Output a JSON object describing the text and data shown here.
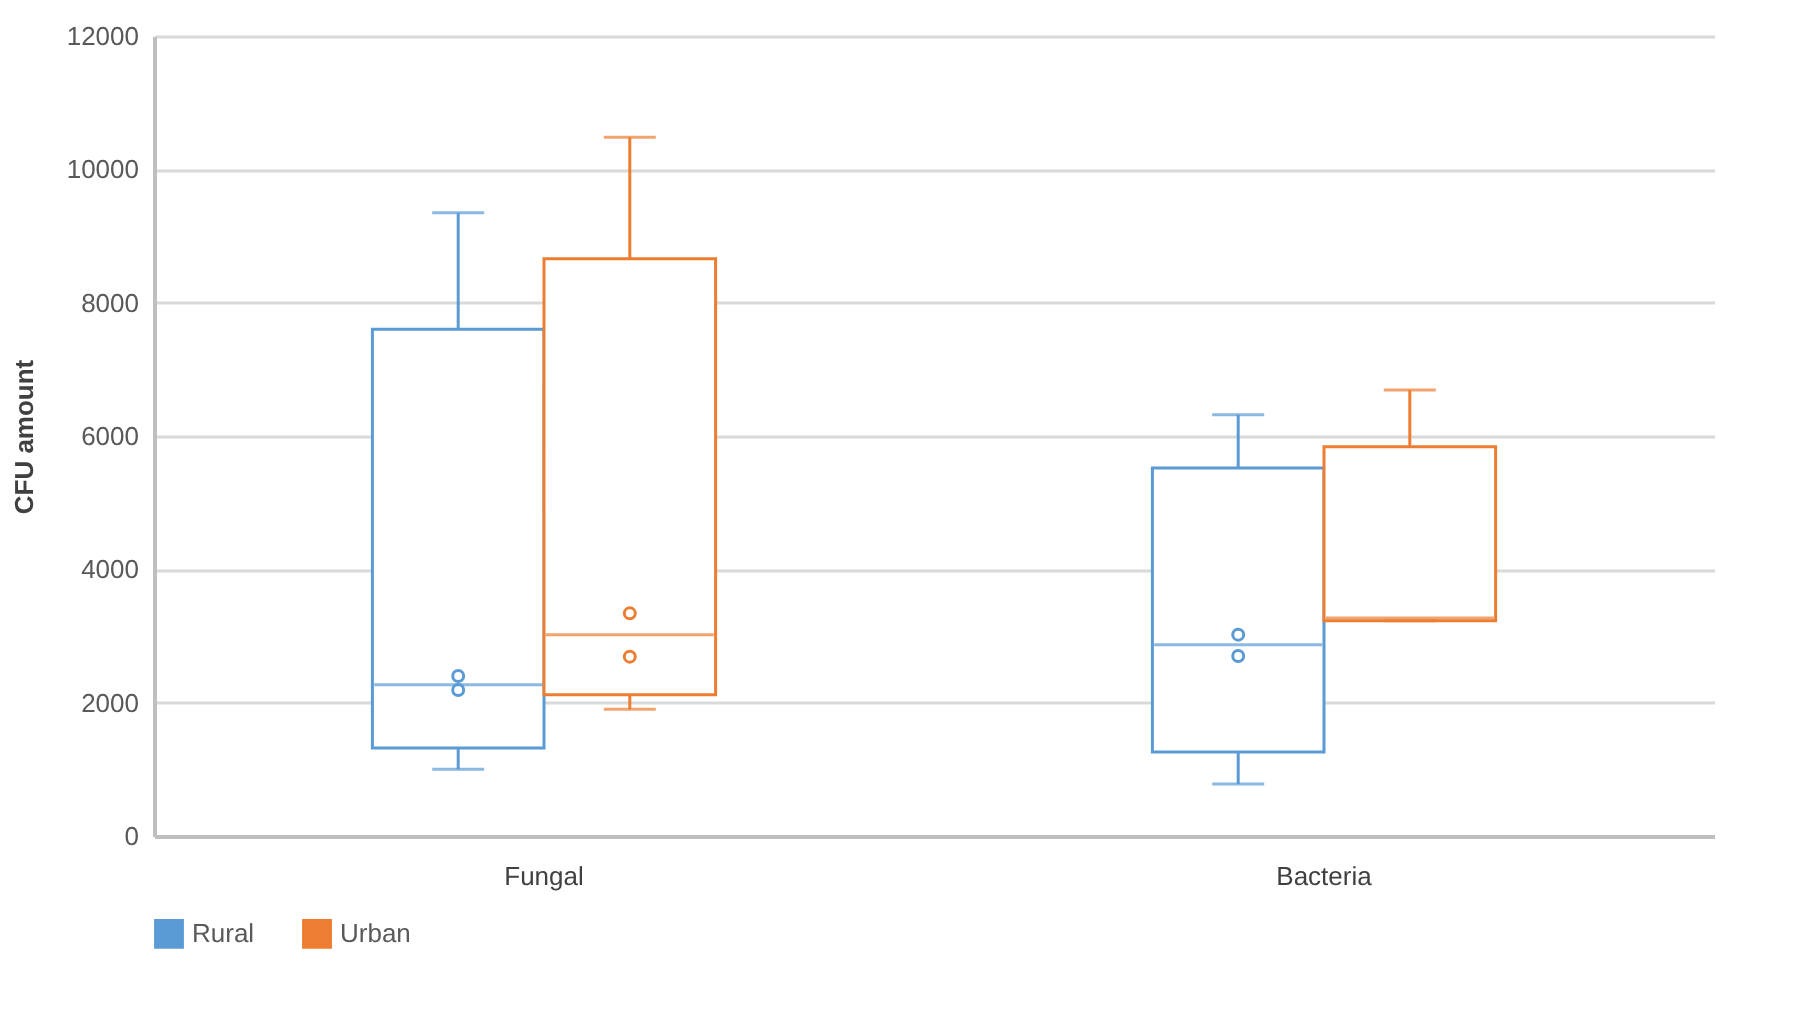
{
  "chart_data": {
    "type": "box",
    "ylabel": "CFU amount",
    "categories": [
      "Fungal",
      "Bacteria"
    ],
    "ylim": [
      0,
      12000
    ],
    "yticks": [
      0,
      2000,
      4000,
      6000,
      8000,
      10000,
      12000
    ],
    "grid": "y",
    "legend": "bottom",
    "series": [
      {
        "name": "Rural",
        "color": "#5b9bd5",
        "boxes": [
          {
            "low": 1000,
            "q1": 1320,
            "median": 2270,
            "q3": 7600,
            "high": 9350,
            "outliers": [
              2400,
              2190
            ]
          },
          {
            "low": 780,
            "q1": 1260,
            "median": 2870,
            "q3": 5520,
            "high": 6320,
            "outliers": [
              3020,
              2700
            ]
          }
        ]
      },
      {
        "name": "Urban",
        "color": "#ed7d31",
        "boxes": [
          {
            "low": 1900,
            "q1": 2120,
            "median": 3020,
            "q3": 8660,
            "high": 10480,
            "outliers": [
              3340,
              2690
            ]
          },
          {
            "low": 3230,
            "q1": 3230,
            "median": 3270,
            "q3": 5840,
            "high": 6690
          }
        ]
      }
    ]
  }
}
